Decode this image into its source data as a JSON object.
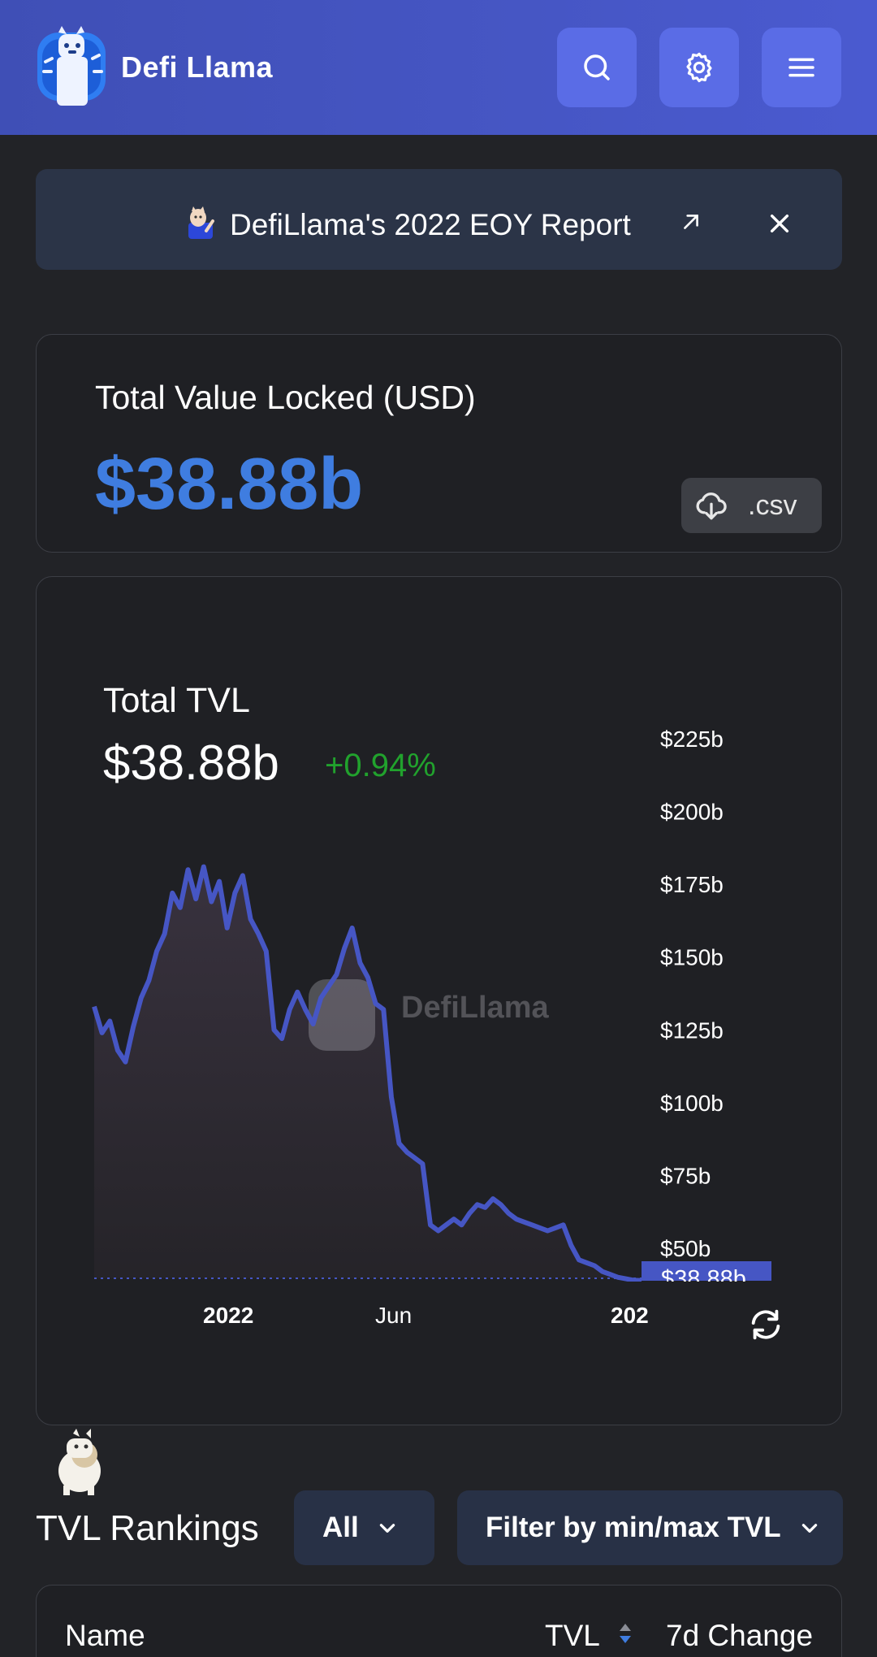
{
  "header": {
    "brand": "Defi Llama",
    "icons": [
      "search-icon",
      "gear-icon",
      "menu-icon"
    ],
    "accent_color": "#4656c4"
  },
  "banner": {
    "text": "DefiLlama's 2022 EOY Report",
    "background": "#2b3447"
  },
  "tvl_summary": {
    "label": "Total Value Locked (USD)",
    "value": "$38.88b",
    "value_color": "#3f7de0",
    "csv_label": ".csv"
  },
  "chart": {
    "title": "Total TVL",
    "value": "$38.88b",
    "change": "+0.94%",
    "change_color": "#21a22d",
    "watermark": "DefiLlama",
    "current_label": "$38.88b"
  },
  "chart_data": {
    "type": "area",
    "title": "Total TVL",
    "ylim": [
      38.88,
      225
    ],
    "y_ticks": [
      "$225b",
      "$200b",
      "$175b",
      "$150b",
      "$125b",
      "$100b",
      "$75b",
      "$50b"
    ],
    "y_tick_values": [
      225,
      200,
      175,
      150,
      125,
      100,
      75,
      50
    ],
    "x_ticks": [
      "2022",
      "Jun",
      "202"
    ],
    "x_tick_positions": [
      0.25,
      0.55,
      0.95
    ],
    "line_color": "#4656c4",
    "series": [
      {
        "values": [
          133,
          124,
          128,
          118,
          114,
          126,
          136,
          142,
          152,
          158,
          172,
          167,
          180,
          170,
          181,
          169,
          176,
          160,
          172,
          178,
          163,
          158,
          152,
          125,
          122,
          132,
          138,
          132,
          127,
          136,
          140,
          144,
          153,
          160,
          148,
          143,
          134,
          132,
          102,
          86,
          83,
          81,
          79,
          58,
          56,
          58,
          60,
          58,
          62,
          65,
          64,
          67,
          65,
          62,
          60,
          59,
          58,
          57,
          56,
          57,
          58,
          51,
          46,
          45,
          44,
          42,
          41,
          40,
          39.5,
          39,
          38.88
        ]
      }
    ],
    "grid": false
  },
  "rankings": {
    "title": "TVL Rankings",
    "category_select": "All",
    "filter_select": "Filter by min/max TVL",
    "columns": [
      "Name",
      "TVL",
      "7d Change"
    ]
  }
}
